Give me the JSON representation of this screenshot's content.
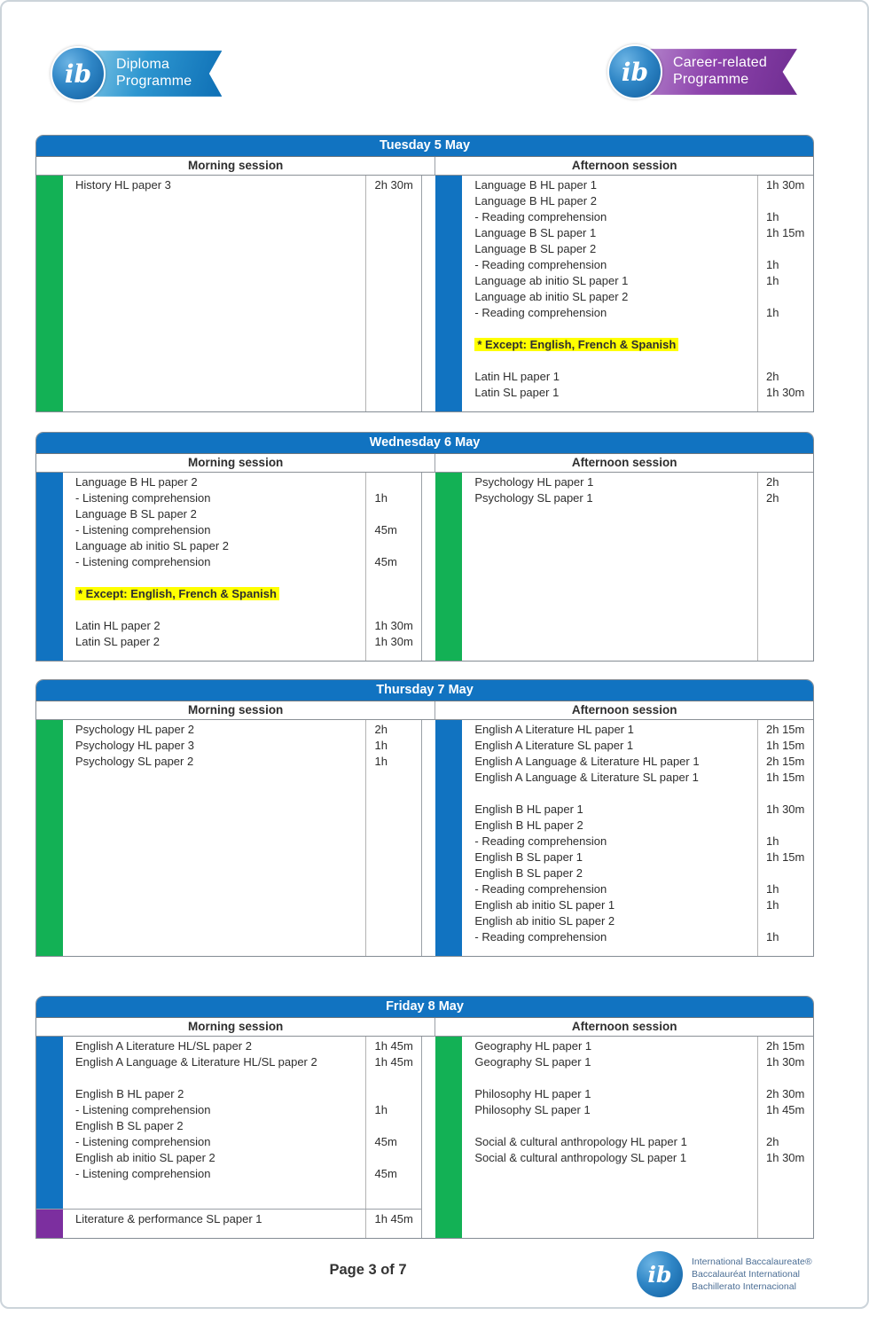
{
  "logos": {
    "ib_monogram": "ib",
    "diploma": {
      "line1": "Diploma",
      "line2": "Programme"
    },
    "career": {
      "line1": "Career-related",
      "line2": "Programme"
    }
  },
  "session_labels": {
    "morning": "Morning session",
    "afternoon": "Afternoon session"
  },
  "colors": {
    "header_blue": "#1173c1",
    "blue": "#1173c1",
    "green": "#13b155",
    "purple": "#7c2f9f",
    "highlight_yellow": "#ffff00"
  },
  "days": [
    {
      "title": "Tuesday 5 May",
      "morning": {
        "sections": [
          {
            "bar": "green",
            "rows": [
              {
                "name": "History HL paper 3",
                "time": "2h 30m"
              }
            ]
          }
        ]
      },
      "afternoon": {
        "sections": [
          {
            "bar": "blue",
            "rows": [
              {
                "name": "Language B HL paper 1",
                "time": "1h 30m"
              },
              {
                "name": "Language B HL paper 2",
                "time": ""
              },
              {
                "name": "- Reading comprehension",
                "time": "1h"
              },
              {
                "name": "Language B SL paper 1",
                "time": "1h 15m"
              },
              {
                "name": "Language B SL paper 2",
                "time": ""
              },
              {
                "name": "- Reading comprehension",
                "time": "1h"
              },
              {
                "name": "Language ab initio SL paper 1",
                "time": "1h"
              },
              {
                "name": "Language ab initio SL paper 2",
                "time": ""
              },
              {
                "name": "- Reading comprehension",
                "time": "1h"
              },
              {
                "name": "",
                "time": ""
              },
              {
                "name": "* Except: English, French & Spanish",
                "time": "",
                "highlight": true
              },
              {
                "name": "",
                "time": ""
              },
              {
                "name": "Latin HL paper 1",
                "time": "2h"
              },
              {
                "name": "Latin SL paper 1",
                "time": "1h 30m"
              }
            ]
          }
        ]
      }
    },
    {
      "title": "Wednesday 6 May",
      "morning": {
        "sections": [
          {
            "bar": "blue",
            "rows": [
              {
                "name": "Language B HL paper 2",
                "time": ""
              },
              {
                "name": "- Listening comprehension",
                "time": "1h"
              },
              {
                "name": "Language B SL paper 2",
                "time": ""
              },
              {
                "name": "- Listening comprehension",
                "time": "45m"
              },
              {
                "name": "Language ab initio SL paper 2",
                "time": ""
              },
              {
                "name": "- Listening comprehension",
                "time": "45m"
              },
              {
                "name": "",
                "time": ""
              },
              {
                "name": "* Except: English, French & Spanish",
                "time": "",
                "highlight": true
              },
              {
                "name": "",
                "time": ""
              },
              {
                "name": "Latin HL paper 2",
                "time": "1h 30m"
              },
              {
                "name": "Latin SL paper 2",
                "time": "1h 30m"
              }
            ]
          }
        ]
      },
      "afternoon": {
        "sections": [
          {
            "bar": "green",
            "rows": [
              {
                "name": "Psychology HL paper 1",
                "time": "2h"
              },
              {
                "name": "Psychology SL paper 1",
                "time": "2h"
              }
            ]
          }
        ]
      }
    },
    {
      "title": "Thursday 7 May",
      "morning": {
        "sections": [
          {
            "bar": "green",
            "rows": [
              {
                "name": "Psychology HL paper 2",
                "time": "2h"
              },
              {
                "name": "Psychology HL paper 3",
                "time": "1h"
              },
              {
                "name": "Psychology SL paper 2",
                "time": "1h"
              }
            ]
          }
        ]
      },
      "afternoon": {
        "sections": [
          {
            "bar": "blue",
            "rows": [
              {
                "name": "English A Literature HL paper 1",
                "time": "2h 15m"
              },
              {
                "name": "English A Literature SL paper 1",
                "time": "1h 15m"
              },
              {
                "name": "English A Language & Literature HL paper 1",
                "time": "2h 15m"
              },
              {
                "name": "English A Language & Literature SL paper 1",
                "time": "1h 15m"
              },
              {
                "name": "",
                "time": ""
              },
              {
                "name": "English B HL paper 1",
                "time": "1h 30m"
              },
              {
                "name": "English B HL paper 2",
                "time": ""
              },
              {
                "name": "- Reading comprehension",
                "time": "1h"
              },
              {
                "name": "English B SL paper 1",
                "time": "1h 15m"
              },
              {
                "name": "English B SL paper 2",
                "time": ""
              },
              {
                "name": "- Reading comprehension",
                "time": "1h"
              },
              {
                "name": "English ab initio SL paper 1",
                "time": "1h"
              },
              {
                "name": "English ab initio SL paper 2",
                "time": ""
              },
              {
                "name": "- Reading comprehension",
                "time": "1h"
              }
            ]
          }
        ]
      }
    },
    {
      "title": "Friday 8 May",
      "morning": {
        "sections": [
          {
            "bar": "blue",
            "rows": [
              {
                "name": "English A Literature HL/SL paper 2",
                "time": "1h 45m"
              },
              {
                "name": "English A Language & Literature HL/SL paper 2",
                "time": "1h 45m"
              },
              {
                "name": "",
                "time": ""
              },
              {
                "name": "English B HL paper 2",
                "time": ""
              },
              {
                "name": "- Listening comprehension",
                "time": "1h"
              },
              {
                "name": "English B SL paper 2",
                "time": ""
              },
              {
                "name": "- Listening comprehension",
                "time": "45m"
              },
              {
                "name": "English ab initio SL paper 2",
                "time": ""
              },
              {
                "name": "- Listening comprehension",
                "time": "45m"
              },
              {
                "name": "",
                "time": ""
              }
            ]
          },
          {
            "bar": "purple",
            "rows": [
              {
                "name": "Literature & performance SL paper 1",
                "time": "1h 45m"
              }
            ]
          }
        ]
      },
      "afternoon": {
        "sections": [
          {
            "bar": "green",
            "rows": [
              {
                "name": "Geography HL paper 1",
                "time": "2h 15m"
              },
              {
                "name": "Geography SL paper 1",
                "time": "1h 30m"
              },
              {
                "name": "",
                "time": ""
              },
              {
                "name": "Philosophy HL paper 1",
                "time": "2h 30m"
              },
              {
                "name": "Philosophy SL paper 1",
                "time": "1h 45m"
              },
              {
                "name": "",
                "time": ""
              },
              {
                "name": "Social & cultural anthropology HL paper 1",
                "time": "2h"
              },
              {
                "name": "Social & cultural anthropology SL paper 1",
                "time": "1h 30m"
              }
            ]
          }
        ]
      }
    }
  ],
  "footer": {
    "page_label": "Page 3 of 7",
    "ib_lines": [
      "International Baccalaureate®",
      "Baccalauréat International",
      "Bachillerato Internacional"
    ]
  }
}
